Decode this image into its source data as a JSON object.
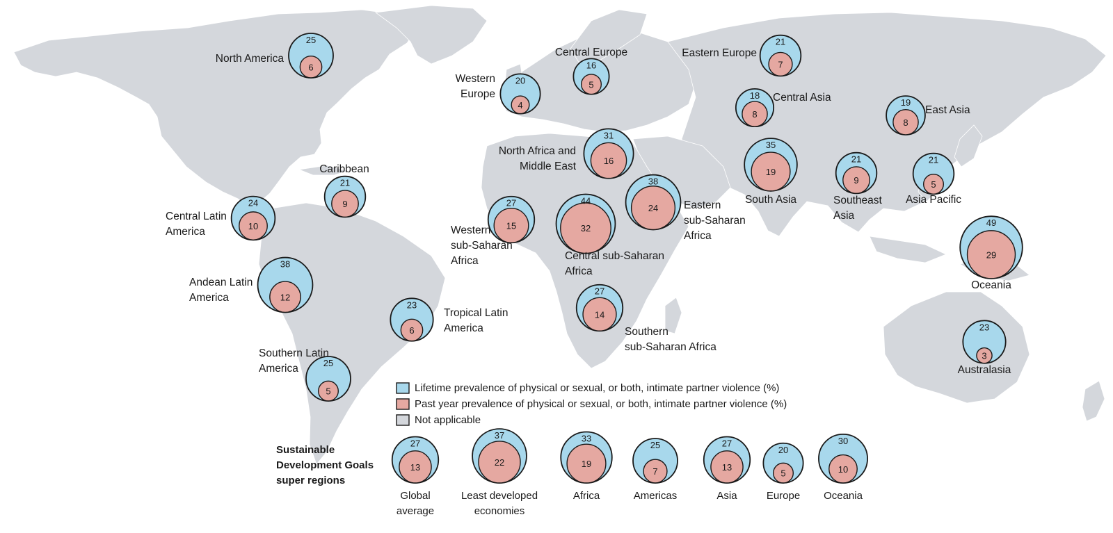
{
  "colors": {
    "lifetime": "#a8d8ec",
    "past_year": "#e5a8a1",
    "not_applicable": "#d4d7dc",
    "outline": "#1a1a1a"
  },
  "legend": {
    "lifetime": "Lifetime prevalence of physical or sexual, or both, intimate partner violence (%)",
    "past_year": "Past year prevalence of physical or sexual, or both, intimate partner violence (%)",
    "not_applicable": "Not applicable"
  },
  "regions": [
    {
      "name": "north-america",
      "label": [
        "North America"
      ],
      "lifetime": 25,
      "past_year": 6
    },
    {
      "name": "central-europe",
      "label": [
        "Central Europe"
      ],
      "lifetime": 16,
      "past_year": 5
    },
    {
      "name": "eastern-europe",
      "label": [
        "Eastern Europe"
      ],
      "lifetime": 21,
      "past_year": 7
    },
    {
      "name": "western-europe",
      "label": [
        "Western",
        "Europe"
      ],
      "lifetime": 20,
      "past_year": 4
    },
    {
      "name": "central-asia",
      "label": [
        "Central Asia"
      ],
      "lifetime": 18,
      "past_year": 8
    },
    {
      "name": "east-asia",
      "label": [
        "East Asia"
      ],
      "lifetime": 19,
      "past_year": 8
    },
    {
      "name": "north-africa-middle-east",
      "label": [
        "North Africa and",
        "Middle East"
      ],
      "lifetime": 31,
      "past_year": 16
    },
    {
      "name": "south-asia",
      "label": [
        "South Asia"
      ],
      "lifetime": 35,
      "past_year": 19
    },
    {
      "name": "southeast-asia",
      "label": [
        "Southeast",
        "Asia"
      ],
      "lifetime": 21,
      "past_year": 9
    },
    {
      "name": "asia-pacific",
      "label": [
        "Asia Pacific"
      ],
      "lifetime": 21,
      "past_year": 5
    },
    {
      "name": "caribbean",
      "label": [
        "Caribbean"
      ],
      "lifetime": 21,
      "past_year": 9
    },
    {
      "name": "central-latin-america",
      "label": [
        "Central Latin",
        "America"
      ],
      "lifetime": 24,
      "past_year": 10
    },
    {
      "name": "western-sub-saharan-africa",
      "label": [
        "Western",
        "sub-Saharan",
        "Africa"
      ],
      "lifetime": 27,
      "past_year": 15
    },
    {
      "name": "central-sub-saharan-africa",
      "label": [
        "Central sub-Saharan",
        "Africa"
      ],
      "lifetime": 44,
      "past_year": 32
    },
    {
      "name": "eastern-sub-saharan-africa",
      "label": [
        "Eastern",
        "sub-Saharan",
        "Africa"
      ],
      "lifetime": 38,
      "past_year": 24
    },
    {
      "name": "oceania",
      "label": [
        "Oceania"
      ],
      "lifetime": 49,
      "past_year": 29
    },
    {
      "name": "andean-latin-america",
      "label": [
        "Andean Latin",
        "America"
      ],
      "lifetime": 38,
      "past_year": 12
    },
    {
      "name": "tropical-latin-america",
      "label": [
        "Tropical Latin",
        "America"
      ],
      "lifetime": 23,
      "past_year": 6
    },
    {
      "name": "southern-sub-saharan-africa",
      "label": [
        "Southern",
        "sub-Saharan Africa"
      ],
      "lifetime": 27,
      "past_year": 14
    },
    {
      "name": "southern-latin-america",
      "label": [
        "Southern Latin",
        "America"
      ],
      "lifetime": 25,
      "past_year": 5
    },
    {
      "name": "australasia",
      "label": [
        "Australasia"
      ],
      "lifetime": 23,
      "past_year": 3
    }
  ],
  "super_regions_title": [
    "Sustainable",
    "Development Goals",
    "super regions"
  ],
  "super_regions": [
    {
      "name": "global-average",
      "label": [
        "Global",
        "average"
      ],
      "lifetime": 27,
      "past_year": 13
    },
    {
      "name": "least-developed-economies",
      "label": [
        "Least developed",
        "economies"
      ],
      "lifetime": 37,
      "past_year": 22
    },
    {
      "name": "africa",
      "label": [
        "Africa"
      ],
      "lifetime": 33,
      "past_year": 19
    },
    {
      "name": "americas",
      "label": [
        "Americas"
      ],
      "lifetime": 25,
      "past_year": 7
    },
    {
      "name": "asia",
      "label": [
        "Asia"
      ],
      "lifetime": 27,
      "past_year": 13
    },
    {
      "name": "europe",
      "label": [
        "Europe"
      ],
      "lifetime": 20,
      "past_year": 5
    },
    {
      "name": "oceania-super",
      "label": [
        "Oceania"
      ],
      "lifetime": 30,
      "past_year": 10
    }
  ]
}
